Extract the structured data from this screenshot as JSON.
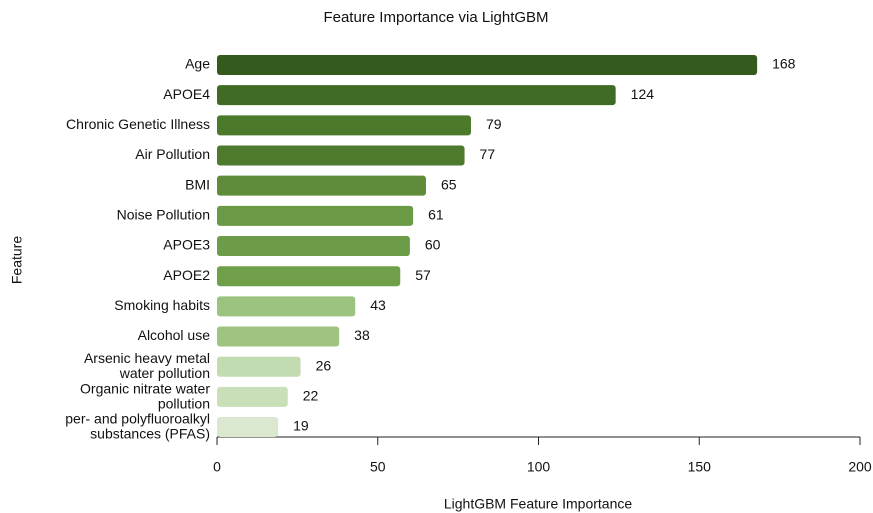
{
  "chart_data": {
    "type": "barh",
    "title": "Feature Importance via LightGBM",
    "xlabel": "LightGBM Feature Importance",
    "ylabel": "Feature",
    "categories": [
      "Age",
      "APOE4",
      "Chronic Genetic Illness",
      "Air Pollution",
      "BMI",
      "Noise Pollution",
      "APOE3",
      "APOE2",
      "Smoking habits",
      "Alcohol use",
      "Arsenic heavy metal\nwater pollution",
      "Organic nitrate water\npollution",
      "per- and polyfluoroalkyl\nsubstances (PFAS)"
    ],
    "values": [
      168,
      124,
      79,
      77,
      65,
      61,
      60,
      57,
      43,
      38,
      26,
      22,
      19
    ],
    "colors": [
      "#345a1e",
      "#3f6b24",
      "#4a7a2a",
      "#4d7a2c",
      "#5e8c3a",
      "#6a9a45",
      "#6c9c47",
      "#6fa049",
      "#9cc27f",
      "#9fc482",
      "#c2dbb0",
      "#c8dfb7",
      "#d9e8cf"
    ],
    "xlim": [
      0,
      200
    ],
    "xticks": [
      0,
      50,
      100,
      150,
      200
    ],
    "grid": false
  }
}
